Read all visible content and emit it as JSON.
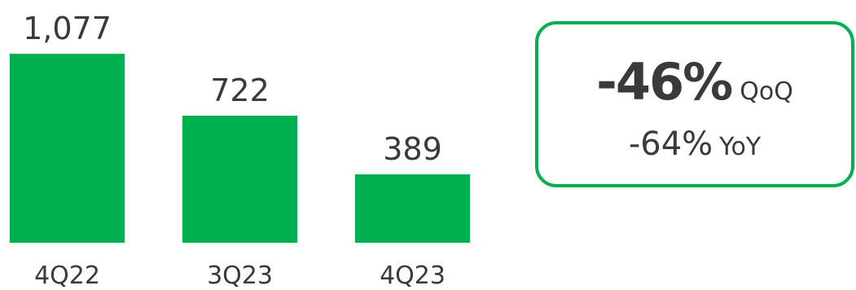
{
  "chart_data": {
    "type": "bar",
    "categories": [
      "4Q22",
      "3Q23",
      "4Q23"
    ],
    "values": [
      1077,
      722,
      389
    ],
    "value_labels": [
      "1,077",
      "722",
      "389"
    ],
    "title": "",
    "xlabel": "",
    "ylabel": "",
    "ylim": [
      0,
      1077
    ],
    "grid": false,
    "bar_color": "#00b04f"
  },
  "callout": {
    "qoq_value": "-46%",
    "qoq_label": "QoQ",
    "yoy_value": "-64%",
    "yoy_label": "YoY",
    "border_color": "#00b04f"
  }
}
